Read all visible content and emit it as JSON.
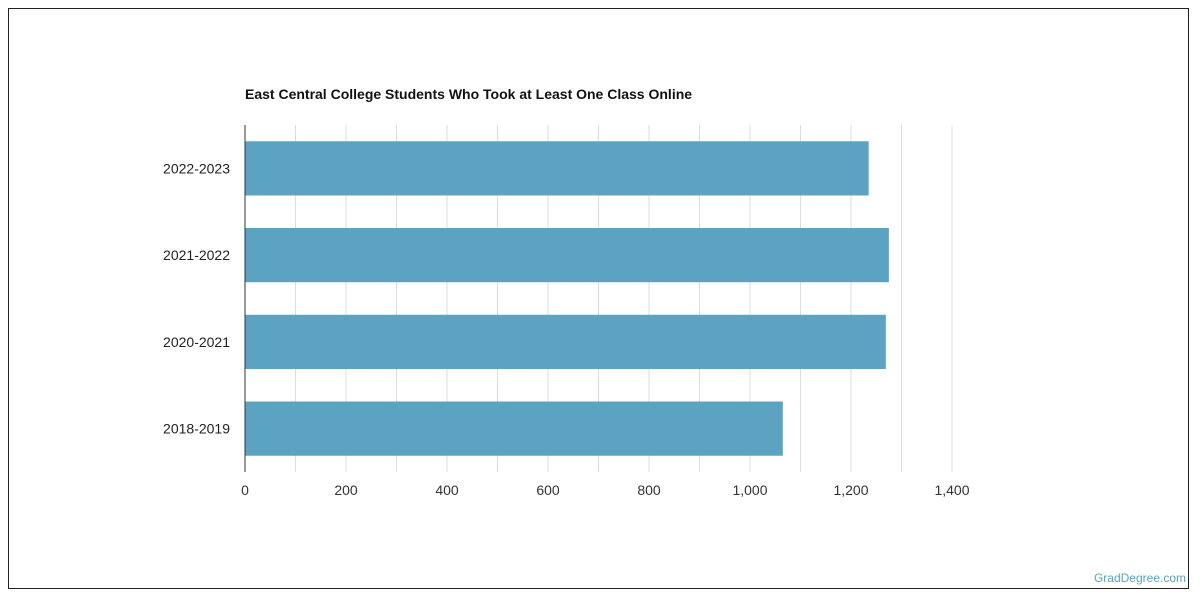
{
  "chart_data": {
    "type": "bar",
    "orientation": "horizontal",
    "title": "East Central College Students Who Took at Least One Class Online",
    "categories": [
      "2022-2023",
      "2021-2022",
      "2020-2021",
      "2018-2019"
    ],
    "values": [
      1235,
      1275,
      1269,
      1065
    ],
    "xlim": [
      0,
      1400
    ],
    "xticks": [
      "0",
      "200",
      "400",
      "600",
      "800",
      "1,000",
      "1,200",
      "1,400"
    ],
    "grid": true,
    "bar_color": "#5ba3c0",
    "grid_color": "#dddddd",
    "axis_color": "#333333"
  },
  "footer": {
    "watermark": "GradDegree.com"
  }
}
